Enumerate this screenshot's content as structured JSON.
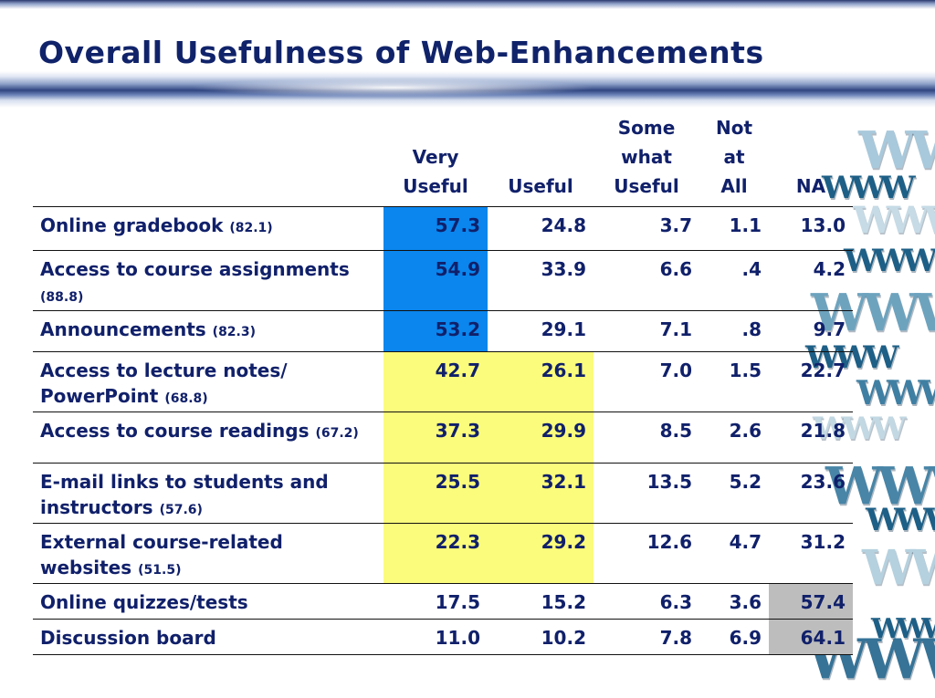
{
  "slide": {
    "title": "Overall Usefulness of Web-Enhancements",
    "decor_text": "WWW"
  },
  "table": {
    "columns": [
      {
        "key": "very_useful",
        "lines": [
          "Very",
          "Useful"
        ]
      },
      {
        "key": "useful",
        "lines": [
          "Useful"
        ]
      },
      {
        "key": "somewhat_useful",
        "lines": [
          "Some",
          "what",
          "Useful"
        ]
      },
      {
        "key": "not_at_all",
        "lines": [
          "Not",
          "at",
          "All"
        ]
      },
      {
        "key": "na",
        "lines": [
          "NA"
        ]
      }
    ],
    "rows": [
      {
        "label": "Online gradebook",
        "pct": "(82.1)",
        "values": [
          "57.3",
          "24.8",
          "3.7",
          "1.1",
          "13.0"
        ],
        "highlights": [
          "blue",
          "",
          "",
          "",
          ""
        ]
      },
      {
        "label": "Access to course assignments",
        "pct": "(88.8)",
        "values": [
          "54.9",
          "33.9",
          "6.6",
          ".4",
          "4.2"
        ],
        "highlights": [
          "blue",
          "",
          "",
          "",
          ""
        ]
      },
      {
        "label": "Announcements",
        "pct": "(82.3)",
        "values": [
          "53.2",
          "29.1",
          "7.1",
          ".8",
          "9.7"
        ],
        "highlights": [
          "blue",
          "",
          "",
          "",
          ""
        ]
      },
      {
        "label": "Access to lecture notes/ PowerPoint",
        "pct": "(68.8)",
        "values": [
          "42.7",
          "26.1",
          "7.0",
          "1.5",
          "22.7"
        ],
        "highlights": [
          "yellow",
          "yellow",
          "",
          "",
          ""
        ]
      },
      {
        "label": "Access to course readings",
        "pct": "(67.2)",
        "values": [
          "37.3",
          "29.9",
          "8.5",
          "2.6",
          "21.8"
        ],
        "highlights": [
          "yellow",
          "yellow",
          "",
          "",
          ""
        ]
      },
      {
        "label": "E-mail links to students and instructors",
        "pct": "(57.6)",
        "values": [
          "25.5",
          "32.1",
          "13.5",
          "5.2",
          "23.6"
        ],
        "highlights": [
          "yellow",
          "yellow",
          "",
          "",
          ""
        ]
      },
      {
        "label": "External course-related websites",
        "pct": "(51.5)",
        "values": [
          "22.3",
          "29.2",
          "12.6",
          "4.7",
          "31.2"
        ],
        "highlights": [
          "yellow",
          "yellow",
          "",
          "",
          ""
        ]
      },
      {
        "label": "Online quizzes/tests",
        "pct": "",
        "values": [
          "17.5",
          "15.2",
          "6.3",
          "3.6",
          "57.4"
        ],
        "highlights": [
          "",
          "",
          "",
          "",
          "gray"
        ]
      },
      {
        "label": "Discussion board",
        "pct": "",
        "values": [
          "11.0",
          "10.2",
          "7.8",
          "6.9",
          "64.1"
        ],
        "highlights": [
          "",
          "",
          "",
          "",
          "gray"
        ]
      }
    ]
  },
  "colors": {
    "title": "#10236a",
    "blue_highlight": "#0a86ee",
    "yellow_highlight": "#fbfb7c",
    "gray_highlight": "#bdbdbd"
  }
}
